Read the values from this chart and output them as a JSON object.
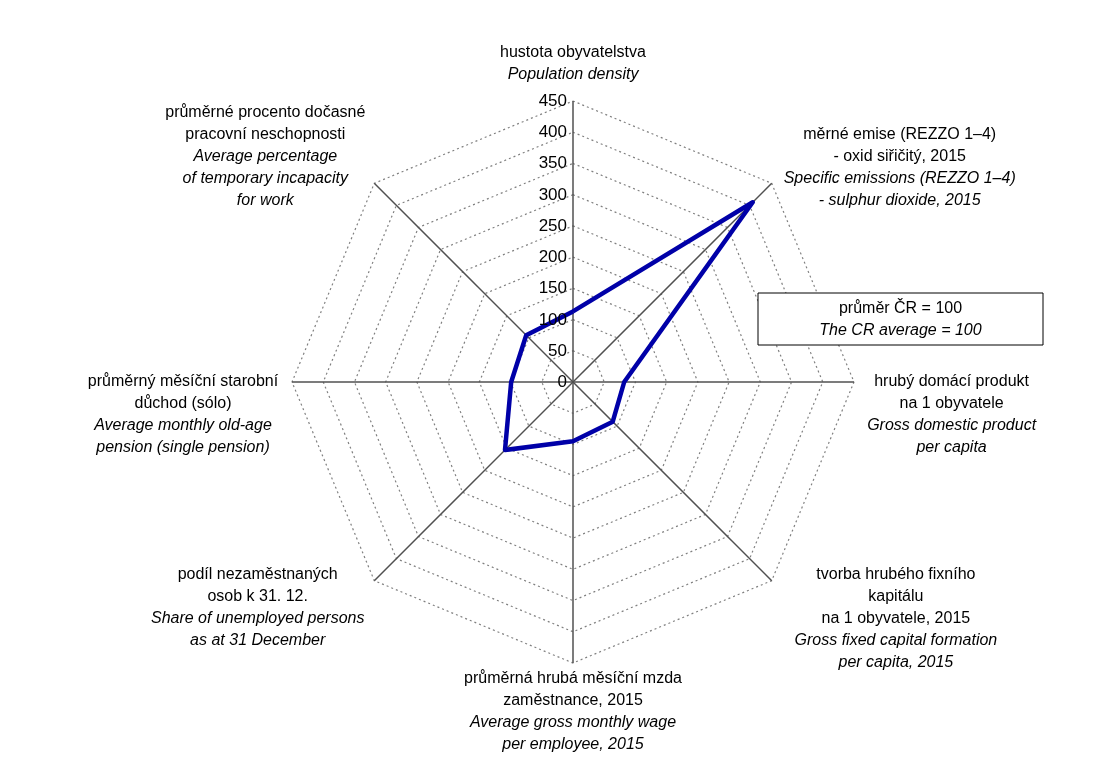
{
  "chart_data": {
    "type": "radar",
    "categories": [
      "hustota obyvatelstva",
      "měrné emise (REZZO 1–4)\n- oxid siřičitý, 2015",
      "hrubý domácí produkt\nna 1 obyvatele",
      "tvorba hrubého fixního\nkapitálu\nna 1 obyvatele, 2015",
      "průměrná hrubá měsíční mzda\nzaměstnance, 2015",
      "podíl nezaměstnaných\nosob k 31. 12.",
      "průměrný měsíční starobní\ndůchod (sólo)",
      "průměrné procento dočasné\npracovní neschopnosti"
    ],
    "series": [
      {
        "color": "#0000a8",
        "values": [
          113,
          407,
          82,
          90,
          95,
          154,
          99,
          106
        ]
      }
    ],
    "ylim": [
      0,
      450
    ],
    "yticks": [
      0,
      50,
      100,
      150,
      200,
      250,
      300,
      350,
      400,
      450
    ],
    "grid": true,
    "annotations": [
      "Population density",
      "Specific emissions (REZZO 1–4)\n- sulphur dioxide, 2015",
      "Gross domestic product\nper capita",
      "Gross fixed capital formation\nper capita, 2015",
      "Average gross monthly wage\nper employee, 2015",
      "Share of unemployed persons\nas at 31 December",
      "Average monthly old-age\npension (single pension)",
      "Average percentage\nof temporary incapacity\nfor work",
      "průměr  ČR = 100",
      "The CR average  = 100"
    ]
  }
}
